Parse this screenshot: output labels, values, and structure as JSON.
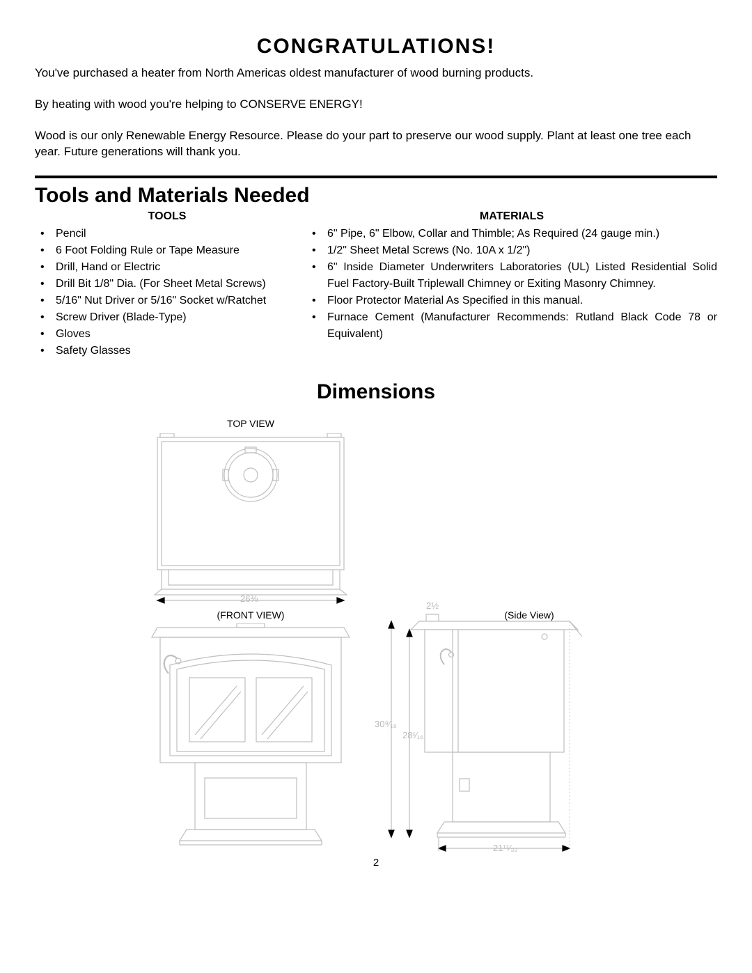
{
  "headings": {
    "congrats": "CONGRATULATIONS!",
    "tools_materials": "Tools and Materials Needed",
    "dimensions": "Dimensions"
  },
  "intro": {
    "p1": "You've purchased a heater from North Americas oldest manufacturer of wood burning products.",
    "p2": "By heating with wood you're helping to CONSERVE ENERGY!",
    "p3": "Wood is our only Renewable Energy Resource. Please do your part to preserve our wood supply. Plant at least one tree each year. Future generations will thank you."
  },
  "tools": {
    "heading": "TOOLS",
    "items": [
      "Pencil",
      "6 Foot Folding Rule or Tape Measure",
      "Drill, Hand or Electric",
      "Drill Bit 1/8\" Dia. (For Sheet Metal Screws)",
      "5/16\" Nut Driver or 5/16\" Socket w/Ratchet",
      "Screw Driver (Blade-Type)",
      "Gloves",
      "Safety Glasses"
    ]
  },
  "materials": {
    "heading": "MATERIALS",
    "items": [
      "6\" Pipe, 6\" Elbow, Collar and Thimble; As Required (24 gauge min.)",
      "1/2\" Sheet Metal Screws (No. 10A x 1/2\")",
      "6\" Inside Diameter Underwriters Laboratories (UL) Listed Residential Solid Fuel Factory-Built Triplewall Chimney or Exiting Masonry Chimney.",
      "Floor Protector Material As Specified in this manual.",
      "Furnace Cement (Manufacturer Recommends: Rutland Black Code 78 or Equivalent)"
    ]
  },
  "diagram": {
    "labels": {
      "top_view": "TOP VIEW",
      "front_view": "(FRONT VIEW)",
      "side_view": "(Side View)"
    },
    "dimensions": {
      "top_width": "26⅜",
      "side_top": "2½",
      "side_h1": "30⁹⁄₁₆",
      "side_h2": "28¹⁄₁₆",
      "side_depth": "21¹¹⁄₃₂"
    },
    "stroke": "#bfbfbf",
    "stroke_width": 1.2
  },
  "page_number": "2"
}
